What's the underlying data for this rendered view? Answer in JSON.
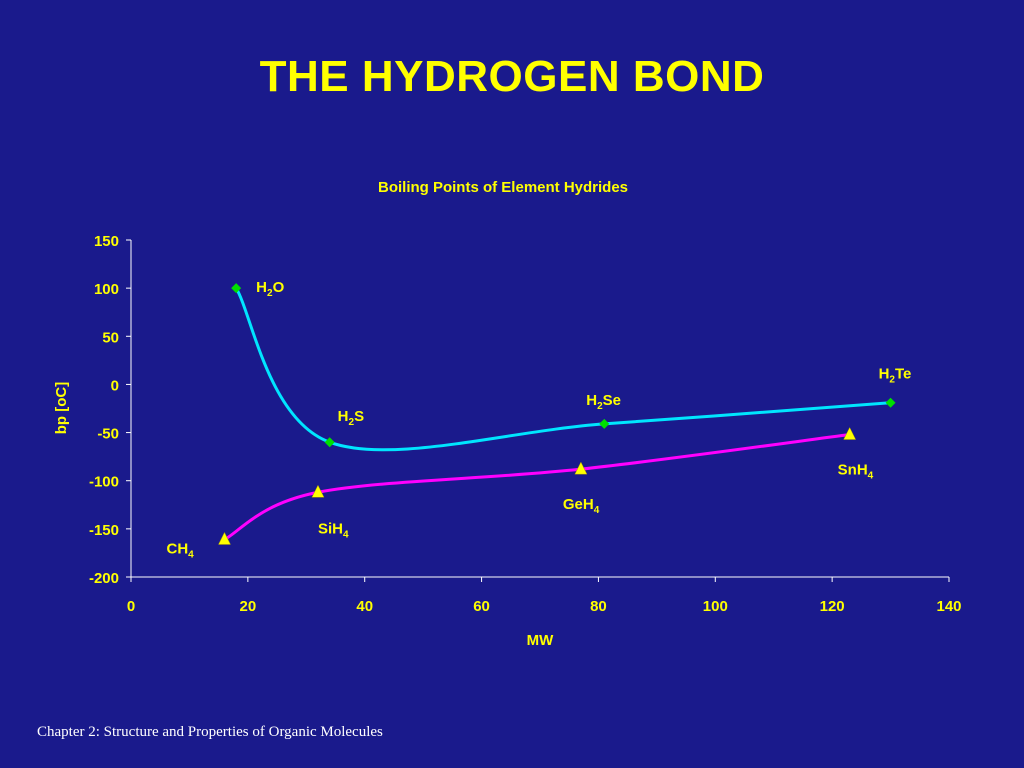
{
  "slide": {
    "title": "THE HYDROGEN BOND",
    "footer": "Chapter 2:  Structure and Properties of Organic Molecules"
  },
  "colors": {
    "background": "#1a1a8c",
    "title": "#ffff00",
    "text": "#ffff00",
    "group16_line": "#00e5ff",
    "group16_marker": "#00e000",
    "group14_line": "#ff00ff",
    "group14_marker": "#ffff00"
  },
  "chart_data": {
    "type": "line",
    "title": "Boiling Points of Element Hydrides",
    "xlabel": "MW",
    "ylabel": "bp [oC]",
    "xlim": [
      0,
      140
    ],
    "ylim": [
      -200,
      150
    ],
    "xticks": [
      0,
      20,
      40,
      60,
      80,
      100,
      120,
      140
    ],
    "yticks": [
      150,
      100,
      50,
      0,
      -50,
      -100,
      -150,
      -200
    ],
    "grid": false,
    "legend": "none",
    "series": [
      {
        "marker": "diamond",
        "smooth": true,
        "points": [
          {
            "x": 18,
            "y": 100,
            "label": "H",
            "sub": "2",
            "suffix": "O"
          },
          {
            "x": 34,
            "y": -60,
            "label": "H",
            "sub": "2",
            "suffix": "S"
          },
          {
            "x": 81,
            "y": -41,
            "label": "H",
            "sub": "2",
            "suffix": "Se"
          },
          {
            "x": 130,
            "y": -19,
            "label": "H",
            "sub": "2",
            "suffix": "Te"
          }
        ]
      },
      {
        "marker": "triangle",
        "smooth": true,
        "points": [
          {
            "x": 16,
            "y": -161,
            "label": "CH",
            "sub": "4",
            "suffix": ""
          },
          {
            "x": 32,
            "y": -112,
            "label": "SiH",
            "sub": "4",
            "suffix": ""
          },
          {
            "x": 77,
            "y": -88,
            "label": "GeH",
            "sub": "4",
            "suffix": ""
          },
          {
            "x": 123,
            "y": -52,
            "label": "SnH",
            "sub": "4",
            "suffix": ""
          }
        ]
      }
    ]
  }
}
